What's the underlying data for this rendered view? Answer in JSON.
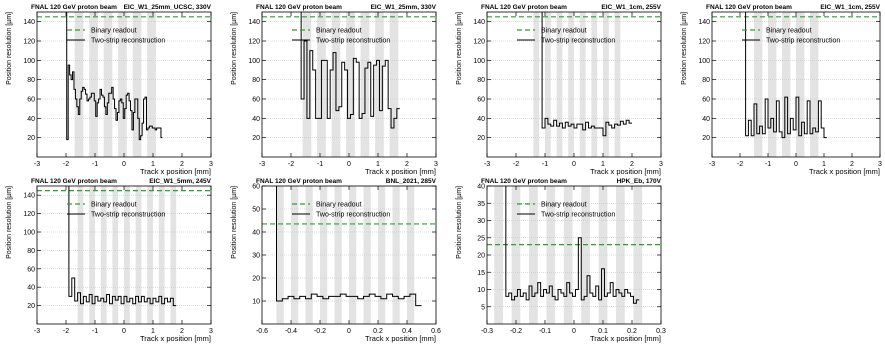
{
  "figure": {
    "common": {
      "header_left": "FNAL 120 GeV proton beam",
      "xlabel": "Track x position [mm]",
      "ylabel": "Position resolution [µm]",
      "legend": [
        "Binary readout",
        "Two-strip reconstruction"
      ],
      "colors": {
        "binary": "#2ca02c",
        "two_strip": "#000000",
        "strip_band": "#e3e3e3",
        "grid": "#bdbdbd"
      }
    }
  },
  "chart_data": [
    {
      "type": "line",
      "sensor": "EIC_W1_25mm_UCSC, 330V",
      "xlim": [
        -3,
        3
      ],
      "ylim": [
        0,
        150
      ],
      "xticks": [
        -3,
        -2,
        -1,
        0,
        1,
        2,
        3
      ],
      "yticks": [
        20,
        40,
        60,
        80,
        100,
        120,
        140
      ],
      "strip_bands": [
        [
          -1.7,
          -1.4
        ],
        [
          -1.2,
          -0.9
        ],
        [
          -0.7,
          -0.4
        ],
        [
          -0.2,
          0.1
        ],
        [
          0.3,
          0.6
        ],
        [
          0.8,
          1.1
        ]
      ],
      "binary": 145,
      "series": [
        {
          "name": "Binary readout",
          "values": [
            145
          ]
        },
        {
          "name": "Two-strip reconstruction",
          "x": [
            -1.95,
            -1.9,
            -1.85,
            -1.8,
            -1.75,
            -1.7,
            -1.65,
            -1.6,
            -1.55,
            -1.5,
            -1.45,
            -1.4,
            -1.35,
            -1.3,
            -1.25,
            -1.2,
            -1.15,
            -1.1,
            -1.05,
            -1.0,
            -0.95,
            -0.9,
            -0.85,
            -0.8,
            -0.75,
            -0.7,
            -0.65,
            -0.6,
            -0.55,
            -0.5,
            -0.45,
            -0.4,
            -0.35,
            -0.3,
            -0.25,
            -0.2,
            -0.15,
            -0.1,
            -0.05,
            0.0,
            0.05,
            0.1,
            0.15,
            0.2,
            0.25,
            0.3,
            0.35,
            0.4,
            0.45,
            0.5,
            0.55,
            0.6,
            0.65,
            0.7,
            0.75,
            0.8,
            0.85,
            0.9,
            0.95,
            1.0,
            1.05,
            1.1,
            1.15,
            1.2,
            1.25,
            1.3
          ],
          "y": [
            18,
            95,
            85,
            80,
            88,
            70,
            60,
            52,
            44,
            60,
            68,
            72,
            70,
            65,
            58,
            60,
            62,
            66,
            66,
            58,
            42,
            56,
            60,
            70,
            64,
            62,
            52,
            44,
            56,
            66,
            66,
            72,
            60,
            50,
            38,
            46,
            58,
            60,
            56,
            40,
            50,
            64,
            66,
            58,
            48,
            28,
            46,
            60,
            60,
            40,
            18,
            22,
            35,
            60,
            62,
            28,
            30,
            32,
            32,
            30,
            30,
            28,
            30,
            30,
            30,
            20
          ]
        }
      ]
    },
    {
      "type": "line",
      "sensor": "EIC_W1_25mm, 330V",
      "xlim": [
        -3,
        3
      ],
      "ylim": [
        0,
        150
      ],
      "xticks": [
        -3,
        -2,
        -1,
        0,
        1,
        2,
        3
      ],
      "yticks": [
        20,
        40,
        60,
        80,
        100,
        120,
        140
      ],
      "strip_bands": [
        [
          -1.6,
          -1.3
        ],
        [
          -1.1,
          -0.8
        ],
        [
          -0.6,
          -0.3
        ],
        [
          -0.1,
          0.2
        ],
        [
          0.4,
          0.7
        ],
        [
          0.9,
          1.2
        ],
        [
          1.4,
          1.7
        ]
      ],
      "binary": 145,
      "series": [
        {
          "name": "Binary readout",
          "values": [
            145
          ]
        },
        {
          "name": "Two-strip reconstruction",
          "x": [
            -1.6,
            -1.5,
            -1.4,
            -1.3,
            -1.2,
            -1.1,
            -1.0,
            -0.9,
            -0.8,
            -0.7,
            -0.6,
            -0.5,
            -0.4,
            -0.3,
            -0.2,
            -0.1,
            0.0,
            0.1,
            0.2,
            0.3,
            0.4,
            0.5,
            0.6,
            0.7,
            0.8,
            0.9,
            1.0,
            1.1,
            1.2,
            1.3,
            1.4,
            1.5,
            1.6,
            1.7
          ],
          "y": [
            60,
            120,
            40,
            110,
            90,
            40,
            40,
            100,
            100,
            40,
            90,
            108,
            48,
            52,
            98,
            90,
            40,
            44,
            102,
            98,
            40,
            45,
            92,
            98,
            42,
            95,
            100,
            48,
            94,
            100,
            50,
            30,
            40,
            50
          ]
        }
      ]
    },
    {
      "type": "line",
      "sensor": "EIC_W1_1cm, 255V",
      "xlim": [
        -3,
        3
      ],
      "ylim": [
        0,
        150
      ],
      "xticks": [
        -3,
        -2,
        -1,
        0,
        1,
        2,
        3
      ],
      "yticks": [
        20,
        40,
        60,
        80,
        100,
        120,
        140
      ],
      "strip_bands": [
        [
          -1.4,
          -1.2
        ],
        [
          -1.0,
          -0.8
        ],
        [
          -0.6,
          -0.4
        ],
        [
          -0.2,
          0.0
        ],
        [
          0.2,
          0.4
        ],
        [
          0.6,
          0.8
        ],
        [
          1.0,
          1.2
        ],
        [
          1.4,
          1.6
        ]
      ],
      "binary": 145,
      "series": [
        {
          "name": "Binary readout",
          "values": [
            145
          ]
        },
        {
          "name": "Two-strip reconstruction",
          "x": [
            -1.05,
            -0.95,
            -0.85,
            -0.75,
            -0.65,
            -0.55,
            -0.45,
            -0.35,
            -0.25,
            -0.15,
            -0.05,
            0.05,
            0.15,
            0.25,
            0.35,
            0.45,
            0.55,
            0.65,
            0.75,
            0.85,
            0.95,
            1.05,
            1.15,
            1.25,
            1.35,
            1.45,
            1.55,
            1.65,
            1.75,
            1.85,
            1.95
          ],
          "y": [
            30,
            40,
            34,
            32,
            38,
            32,
            35,
            30,
            36,
            32,
            34,
            30,
            34,
            34,
            28,
            36,
            30,
            32,
            30,
            30,
            30,
            22,
            36,
            33,
            30,
            34,
            33,
            37,
            34,
            38,
            35
          ]
        }
      ]
    },
    {
      "type": "line",
      "sensor": "EIC_W1_1cm, 255V",
      "xlim": [
        -3,
        3
      ],
      "ylim": [
        0,
        150
      ],
      "xticks": [
        -3,
        -2,
        -1,
        0,
        1,
        2,
        3
      ],
      "yticks": [
        20,
        40,
        60,
        80,
        100,
        120,
        140
      ],
      "strip_bands": [
        [
          -1.5,
          -1.2
        ],
        [
          -1.0,
          -0.7
        ],
        [
          -0.5,
          -0.2
        ],
        [
          0.0,
          0.3
        ],
        [
          0.5,
          0.8
        ]
      ],
      "binary": 145,
      "series": [
        {
          "name": "Binary readout",
          "values": [
            145
          ]
        },
        {
          "name": "Two-strip reconstruction",
          "x": [
            -1.75,
            -1.65,
            -1.55,
            -1.45,
            -1.35,
            -1.25,
            -1.15,
            -1.05,
            -0.95,
            -0.85,
            -0.75,
            -0.65,
            -0.55,
            -0.45,
            -0.35,
            -0.25,
            -0.15,
            -0.05,
            0.05,
            0.15,
            0.25,
            0.35,
            0.45,
            0.55,
            0.65,
            0.75,
            0.85,
            0.95,
            1.05
          ],
          "y": [
            22,
            38,
            22,
            55,
            24,
            32,
            24,
            60,
            30,
            40,
            26,
            58,
            26,
            20,
            62,
            24,
            40,
            28,
            62,
            22,
            36,
            24,
            58,
            24,
            30,
            26,
            58,
            30,
            20
          ]
        }
      ]
    },
    {
      "type": "line",
      "sensor": "EIC_W1_5mm, 245V",
      "xlim": [
        -3,
        3
      ],
      "ylim": [
        0,
        150
      ],
      "xticks": [
        -3,
        -2,
        -1,
        0,
        1,
        2,
        3
      ],
      "yticks": [
        20,
        40,
        60,
        80,
        100,
        120,
        140
      ],
      "strip_bands": [
        [
          -1.6,
          -1.4
        ],
        [
          -1.2,
          -1.0
        ],
        [
          -0.8,
          -0.6
        ],
        [
          -0.4,
          -0.2
        ],
        [
          0.0,
          0.2
        ],
        [
          0.4,
          0.6
        ],
        [
          0.8,
          1.0
        ],
        [
          1.2,
          1.4
        ],
        [
          1.6,
          1.8
        ]
      ],
      "binary": 145,
      "series": [
        {
          "name": "Binary readout",
          "values": [
            145
          ]
        },
        {
          "name": "Two-strip reconstruction",
          "x": [
            -1.85,
            -1.75,
            -1.65,
            -1.55,
            -1.45,
            -1.35,
            -1.25,
            -1.15,
            -1.05,
            -0.95,
            -0.85,
            -0.75,
            -0.65,
            -0.55,
            -0.45,
            -0.35,
            -0.25,
            -0.15,
            -0.05,
            0.05,
            0.15,
            0.25,
            0.35,
            0.45,
            0.55,
            0.65,
            0.75,
            0.85,
            0.95,
            1.05,
            1.15,
            1.25,
            1.35,
            1.45,
            1.55,
            1.65,
            1.75
          ],
          "y": [
            30,
            50,
            25,
            34,
            22,
            30,
            24,
            32,
            22,
            30,
            25,
            28,
            24,
            32,
            22,
            30,
            26,
            30,
            22,
            30,
            24,
            28,
            22,
            30,
            24,
            30,
            24,
            28,
            22,
            28,
            24,
            30,
            22,
            28,
            24,
            28,
            20
          ]
        }
      ]
    },
    {
      "type": "line",
      "sensor": "BNL_2021, 285V",
      "xlim": [
        -0.6,
        0.6
      ],
      "ylim": [
        0,
        60
      ],
      "xticks": [
        -0.6,
        -0.4,
        -0.2,
        0,
        0.2,
        0.4,
        0.6
      ],
      "yticks": [
        10,
        20,
        30,
        40,
        50,
        60
      ],
      "strip_bands": [
        [
          -0.5,
          -0.45
        ],
        [
          -0.4,
          -0.35
        ],
        [
          -0.3,
          -0.25
        ],
        [
          -0.2,
          -0.15
        ],
        [
          -0.1,
          -0.05
        ],
        [
          0.0,
          0.05
        ],
        [
          0.1,
          0.15
        ],
        [
          0.2,
          0.25
        ],
        [
          0.3,
          0.35
        ],
        [
          0.4,
          0.45
        ]
      ],
      "binary": 43.5,
      "series": [
        {
          "name": "Binary readout",
          "values": [
            43.5
          ]
        },
        {
          "name": "Two-strip reconstruction",
          "x": [
            -0.48,
            -0.44,
            -0.4,
            -0.36,
            -0.32,
            -0.28,
            -0.24,
            -0.2,
            -0.16,
            -0.12,
            -0.08,
            -0.04,
            0.0,
            0.04,
            0.08,
            0.12,
            0.16,
            0.2,
            0.24,
            0.28,
            0.32,
            0.36,
            0.4,
            0.44,
            0.48
          ],
          "y": [
            10,
            11,
            12,
            11,
            12,
            11,
            13,
            12,
            11,
            12,
            12,
            13,
            12,
            12,
            11,
            12,
            13,
            12,
            11,
            13,
            12,
            11,
            12,
            13,
            8
          ]
        }
      ]
    },
    {
      "type": "line",
      "sensor": "HPK_Eb, 170V",
      "xlim": [
        -0.3,
        0.3
      ],
      "ylim": [
        0,
        40
      ],
      "xticks": [
        -0.3,
        -0.2,
        -0.1,
        0,
        0.1,
        0.2,
        0.3
      ],
      "yticks": [
        5,
        10,
        15,
        20,
        25,
        30,
        35,
        40
      ],
      "strip_bands": [
        [
          -0.275,
          -0.245
        ],
        [
          -0.215,
          -0.185
        ],
        [
          -0.155,
          -0.125
        ],
        [
          -0.095,
          -0.065
        ],
        [
          -0.035,
          -0.005
        ],
        [
          0.025,
          0.055
        ],
        [
          0.085,
          0.115
        ],
        [
          0.145,
          0.175
        ],
        [
          0.205,
          0.235
        ]
      ],
      "binary": 23,
      "series": [
        {
          "name": "Binary readout",
          "values": [
            23
          ]
        },
        {
          "name": "Two-strip reconstruction",
          "x": [
            -0.23,
            -0.22,
            -0.21,
            -0.2,
            -0.19,
            -0.18,
            -0.17,
            -0.16,
            -0.15,
            -0.14,
            -0.13,
            -0.12,
            -0.11,
            -0.1,
            -0.09,
            -0.08,
            -0.07,
            -0.06,
            -0.05,
            -0.04,
            -0.03,
            -0.02,
            -0.01,
            0.0,
            0.01,
            0.02,
            0.03,
            0.04,
            0.05,
            0.06,
            0.07,
            0.08,
            0.09,
            0.1,
            0.11,
            0.12,
            0.13,
            0.14,
            0.15,
            0.16,
            0.17,
            0.18,
            0.19,
            0.2,
            0.21,
            0.22
          ],
          "y": [
            8,
            9,
            7,
            8,
            10,
            8,
            9,
            7,
            11,
            8,
            9,
            12,
            8,
            10,
            9,
            11,
            8,
            7,
            10,
            9,
            8,
            12,
            9,
            8,
            10,
            25,
            7,
            8,
            14,
            9,
            8,
            11,
            7,
            16,
            8,
            9,
            12,
            8,
            10,
            9,
            8,
            10,
            9,
            8,
            6,
            7
          ]
        }
      ]
    }
  ]
}
